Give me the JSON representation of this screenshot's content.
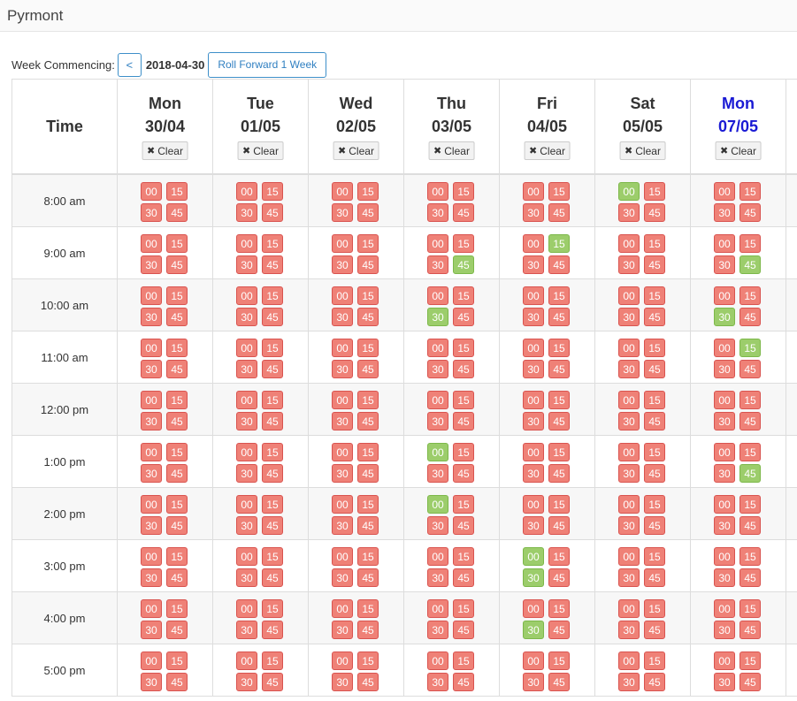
{
  "page": {
    "title": "Pyrmont"
  },
  "week": {
    "label": "Week Commencing:",
    "prev_label": "<",
    "date": "2018-04-30",
    "roll_forward_label": "Roll Forward 1 Week"
  },
  "table": {
    "time_header": "Time",
    "clear_label": "Clear",
    "days": [
      {
        "name": "Mon",
        "date": "30/04",
        "today": false
      },
      {
        "name": "Tue",
        "date": "01/05",
        "today": false
      },
      {
        "name": "Wed",
        "date": "02/05",
        "today": false
      },
      {
        "name": "Thu",
        "date": "03/05",
        "today": false
      },
      {
        "name": "Fri",
        "date": "04/05",
        "today": false
      },
      {
        "name": "Sat",
        "date": "05/05",
        "today": false
      },
      {
        "name": "Mon",
        "date": "07/05",
        "today": true
      }
    ],
    "slot_minutes": [
      "00",
      "15",
      "30",
      "45"
    ],
    "times": [
      "8:00 am",
      "9:00 am",
      "10:00 am",
      "11:00 am",
      "12:00 pm",
      "1:00 pm",
      "2:00 pm",
      "3:00 pm",
      "4:00 pm",
      "5:00 pm"
    ],
    "status_legend": {
      "r": "unavailable",
      "g": "available"
    },
    "status": [
      [
        "rrrr",
        "rrrr",
        "rrrr",
        "rrrr",
        "rrrr",
        "grrr",
        "rrrr"
      ],
      [
        "rrrr",
        "rrrr",
        "rrrr",
        "rrrg",
        "rgrr",
        "rrrr",
        "rrrg"
      ],
      [
        "rrrr",
        "rrrr",
        "rrrr",
        "rrgr",
        "rrrr",
        "rrrr",
        "rrgr"
      ],
      [
        "rrrr",
        "rrrr",
        "rrrr",
        "rrrr",
        "rrrr",
        "rrrr",
        "rgrr"
      ],
      [
        "rrrr",
        "rrrr",
        "rrrr",
        "rrrr",
        "rrrr",
        "rrrr",
        "rrrr"
      ],
      [
        "rrrr",
        "rrrr",
        "rrrr",
        "grrr",
        "rrrr",
        "rrrr",
        "rrrg"
      ],
      [
        "rrrr",
        "rrrr",
        "rrrr",
        "grrr",
        "rrrr",
        "rrrr",
        "rrrr"
      ],
      [
        "rrrr",
        "rrrr",
        "rrrr",
        "rrrr",
        "grgr",
        "rrrr",
        "rrrr"
      ],
      [
        "rrrr",
        "rrrr",
        "rrrr",
        "rrrr",
        "rrgr",
        "rrrr",
        "rrrr"
      ],
      [
        "rrrr",
        "rrrr",
        "rrrr",
        "rrrr",
        "rrrr",
        "rrrr",
        "rrrr"
      ]
    ]
  },
  "colors": {
    "unavailable": "#ef8177",
    "available": "#9ccd6b",
    "today_header": "#1a1ad4",
    "accent": "#2f7fc1"
  }
}
